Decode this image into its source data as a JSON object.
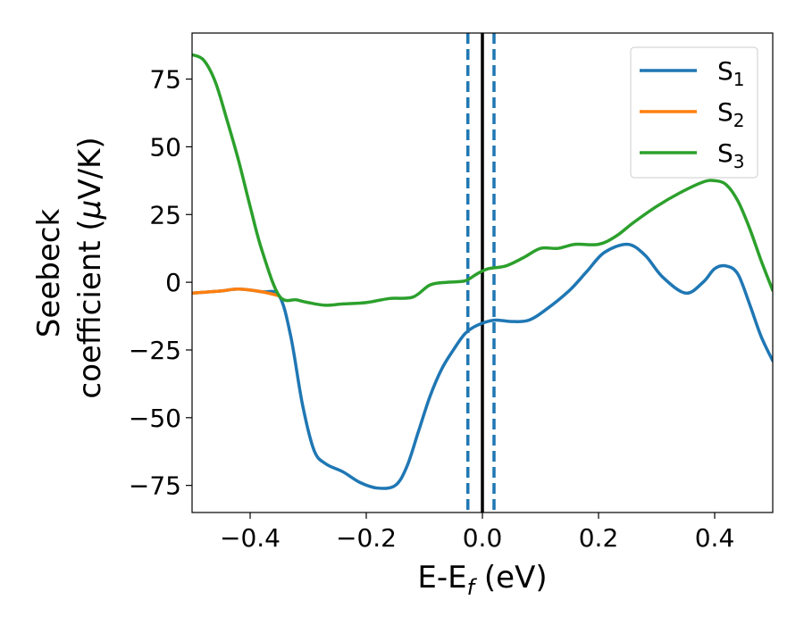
{
  "chart_data": {
    "type": "line",
    "title": "",
    "xlabel": "E-E",
    "xlabel_sub": "f",
    "xlabel_unit": " (eV)",
    "ylabel_line1": "Seebeck",
    "ylabel_line2": "coefficient  (",
    "ylabel_mu": "μ",
    "ylabel_unit": "V/K)",
    "xlim": [
      -0.5,
      0.5
    ],
    "ylim": [
      -85,
      92
    ],
    "xticks": [
      -0.4,
      -0.2,
      0.0,
      0.2,
      0.4
    ],
    "xtick_labels": [
      "−0.4",
      "−0.2",
      "0.0",
      "0.2",
      "0.4"
    ],
    "yticks": [
      75,
      50,
      25,
      0,
      -25,
      -50,
      -75
    ],
    "ytick_labels": [
      "75",
      "50",
      "25",
      "0",
      "−25",
      "−50",
      "−75"
    ],
    "legend_position": "top-right",
    "vlines": [
      {
        "x": -0.025,
        "style": "dashed",
        "color": "#1f77b4"
      },
      {
        "x": 0.0,
        "style": "solid",
        "color": "#000000"
      },
      {
        "x": 0.02,
        "style": "dashed",
        "color": "#1f77b4"
      }
    ],
    "series": [
      {
        "name": "S",
        "name_sub": "1",
        "color": "#1f77b4",
        "points": [
          [
            -0.5,
            -4
          ],
          [
            -0.45,
            -3.2
          ],
          [
            -0.42,
            -2.5
          ],
          [
            -0.38,
            -3.5
          ],
          [
            -0.35,
            -5
          ],
          [
            -0.33,
            -20
          ],
          [
            -0.31,
            -45
          ],
          [
            -0.29,
            -62
          ],
          [
            -0.27,
            -67
          ],
          [
            -0.24,
            -70
          ],
          [
            -0.21,
            -74
          ],
          [
            -0.18,
            -76
          ],
          [
            -0.15,
            -75
          ],
          [
            -0.13,
            -68
          ],
          [
            -0.11,
            -55
          ],
          [
            -0.09,
            -42
          ],
          [
            -0.07,
            -32
          ],
          [
            -0.05,
            -25
          ],
          [
            -0.03,
            -19
          ],
          [
            -0.01,
            -16
          ],
          [
            0.02,
            -14
          ],
          [
            0.05,
            -14.5
          ],
          [
            0.08,
            -14
          ],
          [
            0.11,
            -10
          ],
          [
            0.15,
            -3
          ],
          [
            0.18,
            4
          ],
          [
            0.21,
            11
          ],
          [
            0.25,
            14
          ],
          [
            0.28,
            10
          ],
          [
            0.31,
            2
          ],
          [
            0.35,
            -4
          ],
          [
            0.38,
            0
          ],
          [
            0.4,
            5
          ],
          [
            0.42,
            6
          ],
          [
            0.44,
            3
          ],
          [
            0.46,
            -8
          ],
          [
            0.48,
            -20
          ],
          [
            0.5,
            -29
          ]
        ]
      },
      {
        "name": "S",
        "name_sub": "2",
        "color": "#ff7f0e",
        "points": [
          [
            -0.5,
            -4
          ],
          [
            -0.45,
            -3.2
          ],
          [
            -0.42,
            -2.5
          ],
          [
            -0.38,
            -3.5
          ],
          [
            -0.35,
            -5
          ]
        ]
      },
      {
        "name": "S",
        "name_sub": "3",
        "color": "#2ca02c",
        "points": [
          [
            -0.5,
            84
          ],
          [
            -0.48,
            82
          ],
          [
            -0.46,
            74
          ],
          [
            -0.44,
            60
          ],
          [
            -0.42,
            45
          ],
          [
            -0.4,
            28
          ],
          [
            -0.38,
            12
          ],
          [
            -0.35,
            -5
          ],
          [
            -0.32,
            -6.5
          ],
          [
            -0.3,
            -7.5
          ],
          [
            -0.27,
            -8.5
          ],
          [
            -0.24,
            -8
          ],
          [
            -0.2,
            -7.5
          ],
          [
            -0.16,
            -6
          ],
          [
            -0.12,
            -5.5
          ],
          [
            -0.09,
            -1
          ],
          [
            -0.06,
            0
          ],
          [
            -0.03,
            0.5
          ],
          [
            -0.01,
            3
          ],
          [
            0.01,
            5
          ],
          [
            0.04,
            6
          ],
          [
            0.07,
            9
          ],
          [
            0.1,
            12.5
          ],
          [
            0.13,
            12.5
          ],
          [
            0.16,
            14
          ],
          [
            0.2,
            14
          ],
          [
            0.23,
            17
          ],
          [
            0.26,
            22
          ],
          [
            0.3,
            28
          ],
          [
            0.34,
            33
          ],
          [
            0.38,
            37
          ],
          [
            0.4,
            37.5
          ],
          [
            0.42,
            36
          ],
          [
            0.44,
            30
          ],
          [
            0.46,
            20
          ],
          [
            0.48,
            8
          ],
          [
            0.5,
            -3
          ]
        ]
      }
    ]
  }
}
